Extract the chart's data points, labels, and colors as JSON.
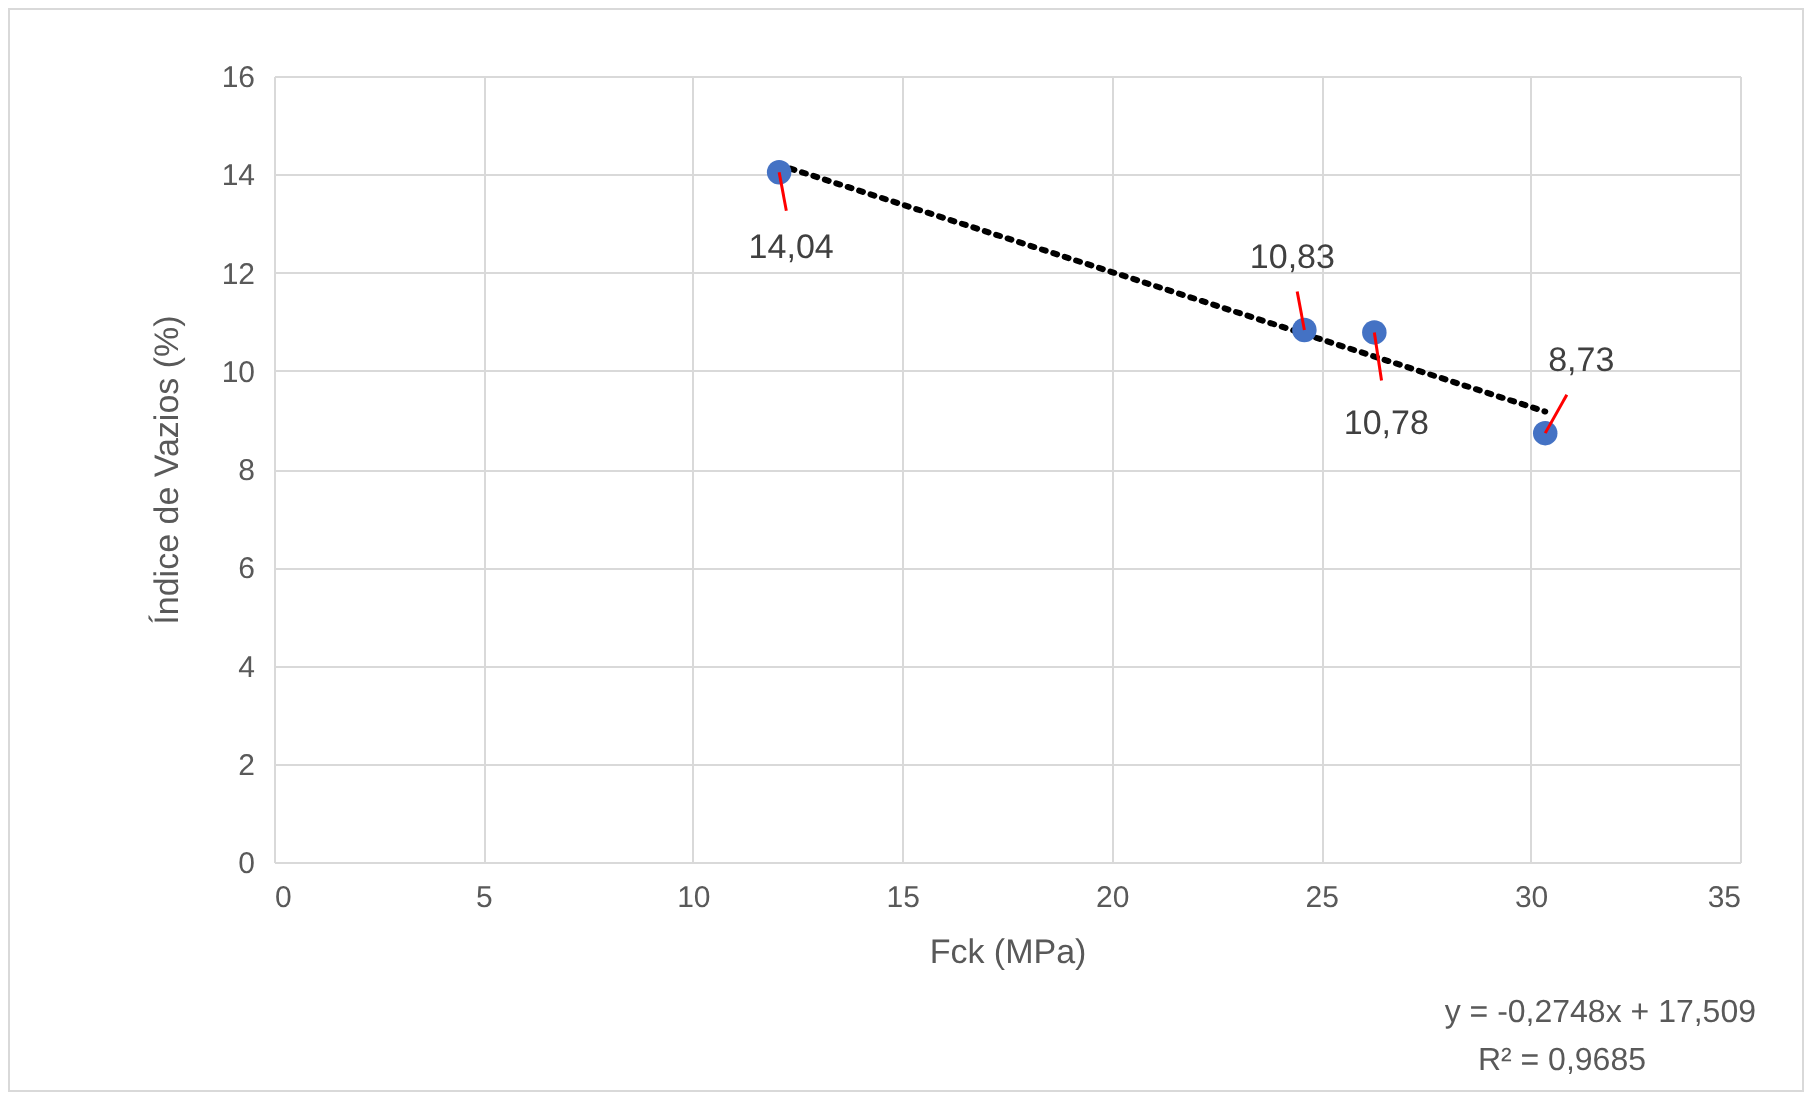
{
  "chart_data": {
    "type": "scatter",
    "xlabel": "Fck (MPa)",
    "ylabel": "Índice de Vazios (%)",
    "xlim": [
      0,
      35
    ],
    "xticks": [
      0,
      5,
      10,
      15,
      20,
      25,
      30,
      35
    ],
    "ylim": [
      0,
      16
    ],
    "yticks": [
      0,
      2,
      4,
      6,
      8,
      10,
      12,
      14,
      16
    ],
    "grid": true,
    "series": [
      {
        "type": "scatter",
        "color": "#4472c4",
        "marker": "circle",
        "x": [
          12.06,
          24.6,
          26.27,
          30.35
        ],
        "values": [
          14.04,
          10.83,
          10.78,
          8.73
        ],
        "value_labels": [
          "14,04",
          "10,83",
          "10,78",
          "8,73"
        ]
      },
      {
        "type": "line",
        "color": "#000000",
        "line_style": "dotted",
        "marker": "none",
        "x": [
          12.06,
          30.35
        ],
        "values": [
          14.19,
          9.17
        ]
      }
    ],
    "annotations": [
      "y = -0,2748x + 17,509",
      "R² = 0,9685"
    ]
  }
}
